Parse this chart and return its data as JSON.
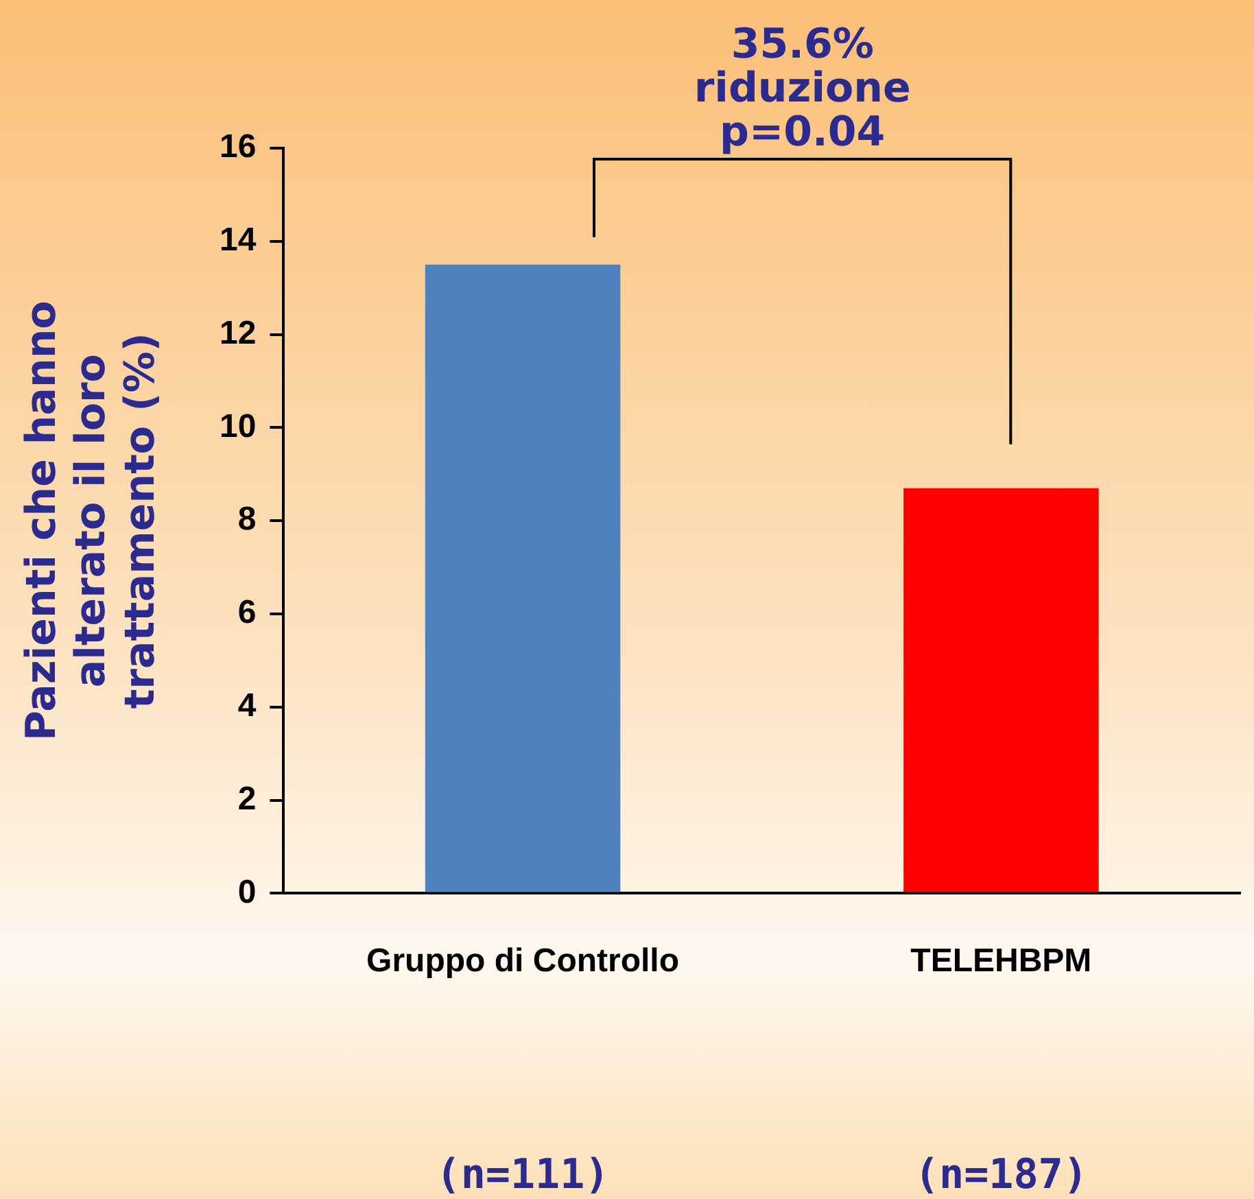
{
  "chart_data": {
    "type": "bar",
    "ylabel": "Pazienti che hanno\nalterato il loro\ntrattamento (%)",
    "categories": [
      "Gruppo di Controllo",
      "TELEHBPM"
    ],
    "values": [
      13.5,
      8.7
    ],
    "colors": [
      "#4f81bd",
      "#ff0000"
    ],
    "ylim": [
      0,
      16
    ],
    "yticks": [
      0,
      2,
      4,
      6,
      8,
      10,
      12,
      14,
      16
    ],
    "grid": false,
    "legend": false,
    "annotations": [
      "35.6%\nriduzione\np=0.04",
      "(n=111)",
      "(n=187)"
    ]
  }
}
